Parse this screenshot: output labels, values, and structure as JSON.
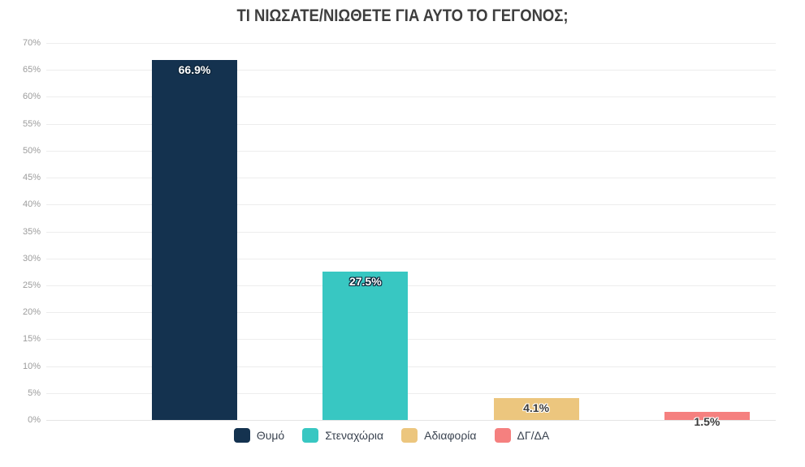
{
  "chart_data": {
    "type": "bar",
    "title": "ΤΙ ΝΙΩΣΑΤΕ/ΝΙΩΘΕΤΕ ΓΙΑ ΑΥΤΟ ΤΟ ΓΕΓΟΝΟΣ;",
    "categories": [
      "Θυμό",
      "Στεναχώρια",
      "Αδιαφορία",
      "ΔΓ/ΔΑ"
    ],
    "values": [
      66.9,
      27.5,
      4.1,
      1.5
    ],
    "value_labels": [
      "66.9%",
      "27.5%",
      "4.1%",
      "1.5%"
    ],
    "colors": [
      "#14324f",
      "#38c7c2",
      "#ecc67e",
      "#f5807f"
    ],
    "value_label_styles": [
      "light",
      "light",
      "dark",
      "dark"
    ],
    "xlabel": "",
    "ylabel": "",
    "ylim": [
      0,
      70
    ],
    "ytick_step": 5,
    "ytick_suffix": "%",
    "grid": true,
    "legend_position": "bottom"
  }
}
